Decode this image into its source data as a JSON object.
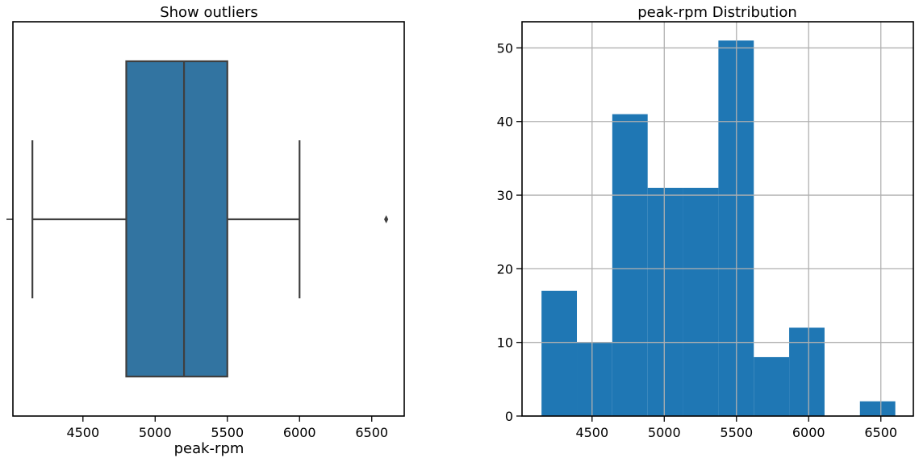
{
  "chart_data": [
    {
      "type": "box",
      "title": "Show outliers",
      "xlabel": "peak-rpm",
      "ylabel": "",
      "xlim": [
        4015,
        6725
      ],
      "xticks": [
        4500,
        5000,
        5500,
        6000,
        6500
      ],
      "box": {
        "whisker_low": 4150,
        "q1": 4800,
        "median": 5200,
        "q3": 5500,
        "whisker_high": 6000,
        "outliers": [
          6600
        ]
      },
      "color": "#3274a1",
      "edge_color": "#3f3f3f",
      "grid": false
    },
    {
      "type": "histogram",
      "title": "peak-rpm Distribution",
      "xlabel": "",
      "ylabel": "",
      "xlim": [
        4015,
        6725
      ],
      "ylim": [
        0,
        53.55
      ],
      "xticks": [
        4500,
        5000,
        5500,
        6000,
        6500
      ],
      "yticks": [
        0,
        10,
        20,
        30,
        40,
        50
      ],
      "bins": [
        {
          "x0": 4150,
          "x1": 4395,
          "count": 17
        },
        {
          "x0": 4395,
          "x1": 4640,
          "count": 10
        },
        {
          "x0": 4640,
          "x1": 4885,
          "count": 41
        },
        {
          "x0": 4885,
          "x1": 5130,
          "count": 31
        },
        {
          "x0": 5130,
          "x1": 5375,
          "count": 31
        },
        {
          "x0": 5375,
          "x1": 5620,
          "count": 51
        },
        {
          "x0": 5620,
          "x1": 5865,
          "count": 8
        },
        {
          "x0": 5865,
          "x1": 6110,
          "count": 12
        },
        {
          "x0": 6110,
          "x1": 6355,
          "count": 0
        },
        {
          "x0": 6355,
          "x1": 6600,
          "count": 2
        }
      ],
      "color": "#1f77b4",
      "grid": true
    }
  ]
}
